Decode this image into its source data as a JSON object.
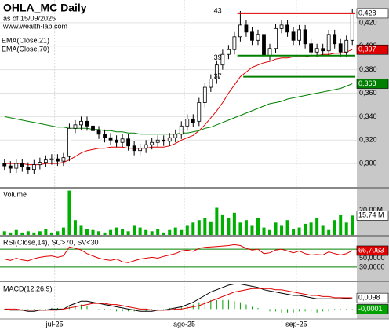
{
  "chart_data": [
    {
      "type": "candlestick",
      "title": "OHLA_MC Daily",
      "subtitle": "as of 15/09/2025",
      "source": "www.wealth-lab.com",
      "xlim": [
        0,
        60
      ],
      "ylim": [
        0.28,
        0.438
      ],
      "yticks": [
        {
          "value": 0.3,
          "label": "0,300"
        },
        {
          "value": 0.32,
          "label": "0,320"
        },
        {
          "value": 0.34,
          "label": "0,340"
        },
        {
          "value": 0.36,
          "label": "0,360"
        },
        {
          "value": 0.38,
          "label": "0,380"
        },
        {
          "value": 0.4,
          "label": "0,400"
        },
        {
          "value": 0.42,
          "label": "0,420"
        }
      ],
      "grid": true,
      "up_color": "#ffffff",
      "down_color": "#000000",
      "open": [
        0.3,
        0.298,
        0.296,
        0.3,
        0.297,
        0.295,
        0.299,
        0.301,
        0.303,
        0.304,
        0.302,
        0.306,
        0.33,
        0.333,
        0.336,
        0.332,
        0.328,
        0.325,
        0.322,
        0.32,
        0.318,
        0.321,
        0.315,
        0.311,
        0.313,
        0.316,
        0.318,
        0.32,
        0.319,
        0.322,
        0.325,
        0.332,
        0.338,
        0.336,
        0.352,
        0.365,
        0.372,
        0.384,
        0.393,
        0.397,
        0.408,
        0.418,
        0.412,
        0.405,
        0.41,
        0.392,
        0.398,
        0.415,
        0.418,
        0.412,
        0.405,
        0.414,
        0.402,
        0.395,
        0.398,
        0.396,
        0.41,
        0.402,
        0.395,
        0.405
      ],
      "high": [
        0.304,
        0.302,
        0.304,
        0.304,
        0.301,
        0.303,
        0.305,
        0.307,
        0.308,
        0.308,
        0.309,
        0.334,
        0.337,
        0.34,
        0.34,
        0.336,
        0.332,
        0.329,
        0.326,
        0.324,
        0.325,
        0.325,
        0.319,
        0.317,
        0.32,
        0.322,
        0.324,
        0.324,
        0.326,
        0.329,
        0.336,
        0.342,
        0.342,
        0.356,
        0.369,
        0.376,
        0.388,
        0.397,
        0.401,
        0.412,
        0.43,
        0.422,
        0.416,
        0.414,
        0.414,
        0.402,
        0.419,
        0.422,
        0.422,
        0.416,
        0.418,
        0.418,
        0.406,
        0.402,
        0.402,
        0.414,
        0.414,
        0.406,
        0.409,
        0.432
      ],
      "low": [
        0.294,
        0.292,
        0.292,
        0.293,
        0.291,
        0.291,
        0.295,
        0.297,
        0.299,
        0.298,
        0.298,
        0.302,
        0.326,
        0.329,
        0.328,
        0.324,
        0.321,
        0.318,
        0.316,
        0.314,
        0.314,
        0.311,
        0.307,
        0.307,
        0.309,
        0.312,
        0.314,
        0.315,
        0.315,
        0.318,
        0.321,
        0.328,
        0.331,
        0.332,
        0.348,
        0.361,
        0.368,
        0.38,
        0.389,
        0.393,
        0.404,
        0.408,
        0.401,
        0.401,
        0.388,
        0.388,
        0.394,
        0.411,
        0.408,
        0.401,
        0.401,
        0.398,
        0.391,
        0.391,
        0.392,
        0.392,
        0.398,
        0.391,
        0.391,
        0.401
      ],
      "close": [
        0.298,
        0.296,
        0.3,
        0.297,
        0.295,
        0.299,
        0.301,
        0.303,
        0.304,
        0.302,
        0.305,
        0.33,
        0.333,
        0.336,
        0.332,
        0.328,
        0.325,
        0.322,
        0.32,
        0.318,
        0.321,
        0.315,
        0.311,
        0.313,
        0.316,
        0.318,
        0.32,
        0.319,
        0.322,
        0.325,
        0.332,
        0.338,
        0.335,
        0.352,
        0.365,
        0.372,
        0.384,
        0.393,
        0.397,
        0.408,
        0.418,
        0.412,
        0.405,
        0.41,
        0.392,
        0.398,
        0.415,
        0.418,
        0.412,
        0.405,
        0.414,
        0.402,
        0.395,
        0.398,
        0.396,
        0.41,
        0.402,
        0.395,
        0.405,
        0.428
      ],
      "close_label": "0,428",
      "series": [
        {
          "name": "EMA(Close,21)",
          "color": "#e00000",
          "last_label": "0,397",
          "values": [
            0.3,
            0.3,
            0.3,
            0.3,
            0.299,
            0.299,
            0.299,
            0.3,
            0.3,
            0.3,
            0.301,
            0.303,
            0.306,
            0.309,
            0.311,
            0.312,
            0.313,
            0.313,
            0.314,
            0.314,
            0.314,
            0.313,
            0.313,
            0.313,
            0.313,
            0.314,
            0.314,
            0.314,
            0.315,
            0.317,
            0.32,
            0.322,
            0.324,
            0.328,
            0.333,
            0.339,
            0.345,
            0.352,
            0.36,
            0.367,
            0.374,
            0.378,
            0.382,
            0.384,
            0.386,
            0.387,
            0.389,
            0.39,
            0.39,
            0.391,
            0.391,
            0.391,
            0.392,
            0.392,
            0.393,
            0.393,
            0.394,
            0.394,
            0.395,
            0.397
          ]
        },
        {
          "name": "EMA(Close,70)",
          "color": "#008000",
          "last_label": "0,368",
          "values": [
            0.34,
            0.339,
            0.338,
            0.337,
            0.336,
            0.335,
            0.334,
            0.333,
            0.332,
            0.331,
            0.331,
            0.33,
            0.33,
            0.33,
            0.33,
            0.329,
            0.329,
            0.328,
            0.328,
            0.327,
            0.327,
            0.326,
            0.326,
            0.325,
            0.325,
            0.325,
            0.325,
            0.325,
            0.325,
            0.325,
            0.326,
            0.326,
            0.327,
            0.328,
            0.33,
            0.331,
            0.333,
            0.335,
            0.337,
            0.339,
            0.341,
            0.343,
            0.345,
            0.347,
            0.349,
            0.351,
            0.352,
            0.353,
            0.355,
            0.356,
            0.357,
            0.358,
            0.359,
            0.36,
            0.361,
            0.362,
            0.363,
            0.364,
            0.366,
            0.368
          ]
        }
      ],
      "hlines": [
        {
          "value": 0.428,
          "color": "#e00000",
          "x": [
            40,
            60
          ]
        },
        {
          "value": 0.392,
          "color": "#008000",
          "x": [
            40,
            60
          ]
        },
        {
          "value": 0.374,
          "color": "#008000",
          "x": [
            41,
            60
          ]
        }
      ],
      "annotations": [
        {
          "text": ",43",
          "x": 36,
          "y": 0.43
        },
        {
          "text": ",39",
          "x": 36,
          "y": 0.39
        },
        {
          "text": ",37",
          "x": 36,
          "y": 0.374
        }
      ]
    },
    {
      "type": "bar",
      "title": "Volume",
      "color": "#00b000",
      "ylim": [
        0,
        37
      ],
      "yticks": [
        {
          "value": 20,
          "label": "20,00M"
        }
      ],
      "last_label": "15,74 M",
      "values": [
        3,
        2,
        4,
        2,
        3,
        2,
        3,
        5,
        2,
        3,
        6,
        36,
        12,
        8,
        5,
        4,
        3,
        2,
        4,
        6,
        5,
        3,
        8,
        6,
        4,
        3,
        5,
        2,
        4,
        6,
        4,
        8,
        10,
        12,
        14,
        11,
        22,
        16,
        14,
        18,
        10,
        12,
        8,
        14,
        6,
        4,
        10,
        8,
        12,
        5,
        6,
        9,
        10,
        14,
        8,
        4,
        12,
        16,
        10,
        15.74
      ]
    },
    {
      "type": "line",
      "title": "RSI(Close,14), SC>70, SV<30",
      "ylim": [
        0,
        100
      ],
      "yticks": [
        {
          "value": 30,
          "label": "30,0000"
        },
        {
          "value": 50,
          "label": "50,0000"
        }
      ],
      "levels": [
        70,
        30
      ],
      "level_color": "#008000",
      "series": [
        {
          "color": "#e00000",
          "last_label": "66,7063",
          "values": [
            48,
            45,
            50,
            46,
            44,
            49,
            52,
            54,
            55,
            52,
            55,
            75,
            72,
            68,
            60,
            55,
            50,
            47,
            45,
            48,
            42,
            40,
            44,
            48,
            50,
            52,
            50,
            54,
            57,
            60,
            66,
            68,
            65,
            72,
            74,
            75,
            76,
            77,
            78,
            80,
            78,
            72,
            68,
            70,
            60,
            62,
            68,
            70,
            66,
            62,
            66,
            60,
            57,
            58,
            57,
            64,
            60,
            57,
            60,
            66.7063
          ]
        }
      ]
    },
    {
      "type": "macd",
      "title": "MACD(12,26,9)",
      "ylim": [
        -0.008,
        0.023
      ],
      "xlim": [
        0,
        60
      ],
      "xticks": [
        {
          "value": 9,
          "label": "jul-25"
        },
        {
          "value": 31,
          "label": "ago-25"
        },
        {
          "value": 50,
          "label": "sep-25"
        }
      ],
      "series": [
        {
          "color": "#000000",
          "last_label": "0,0098",
          "values": [
            0,
            -0.001,
            -0.001,
            -0.001,
            -0.002,
            -0.002,
            -0.001,
            -0.001,
            0,
            0,
            0,
            0.003,
            0.005,
            0.007,
            0.007,
            0.006,
            0.005,
            0.004,
            0.003,
            0.002,
            0.001,
            0,
            -0.001,
            -0.002,
            -0.002,
            -0.002,
            -0.001,
            -0.001,
            0,
            0.001,
            0.002,
            0.004,
            0.006,
            0.009,
            0.012,
            0.015,
            0.017,
            0.019,
            0.021,
            0.022,
            0.022,
            0.021,
            0.02,
            0.019,
            0.017,
            0.016,
            0.015,
            0.014,
            0.013,
            0.012,
            0.012,
            0.011,
            0.01,
            0.009,
            0.009,
            0.009,
            0.009,
            0.009,
            0.0095,
            0.0098
          ]
        },
        {
          "color": "#e00000",
          "values": [
            0,
            0,
            0,
            -0.001,
            -0.001,
            -0.001,
            -0.001,
            -0.001,
            -0.001,
            -0.001,
            0,
            0.001,
            0.002,
            0.003,
            0.004,
            0.005,
            0.005,
            0.005,
            0.004,
            0.004,
            0.003,
            0.002,
            0.001,
            0,
            0,
            -0.001,
            -0.001,
            -0.001,
            -0.001,
            0,
            0,
            0.001,
            0.002,
            0.003,
            0.005,
            0.007,
            0.009,
            0.011,
            0.013,
            0.015,
            0.016,
            0.017,
            0.018,
            0.018,
            0.018,
            0.018,
            0.017,
            0.017,
            0.016,
            0.015,
            0.014,
            0.013,
            0.012,
            0.012,
            0.011,
            0.011,
            0.01,
            0.01,
            0.0099,
            0.0099
          ]
        }
      ],
      "histogram": {
        "color": "#00a000",
        "last_label": "-0,0001",
        "values": [
          0,
          -0.001,
          -0.001,
          0,
          -0.001,
          -0.001,
          0,
          0,
          0.001,
          0.001,
          0,
          0.002,
          0.003,
          0.004,
          0.003,
          0.001,
          0,
          -0.001,
          -0.001,
          -0.002,
          -0.002,
          -0.002,
          -0.002,
          -0.002,
          -0.002,
          -0.001,
          0,
          0,
          0.001,
          0.001,
          0.002,
          0.003,
          0.004,
          0.006,
          0.007,
          0.008,
          0.008,
          0.008,
          0.008,
          0.007,
          0.006,
          0.004,
          0.002,
          0.001,
          -0.001,
          -0.002,
          -0.002,
          -0.003,
          -0.003,
          -0.003,
          -0.002,
          -0.002,
          -0.002,
          -0.003,
          -0.002,
          -0.002,
          -0.001,
          -0.001,
          -0.0004,
          -0.0001
        ]
      }
    }
  ]
}
